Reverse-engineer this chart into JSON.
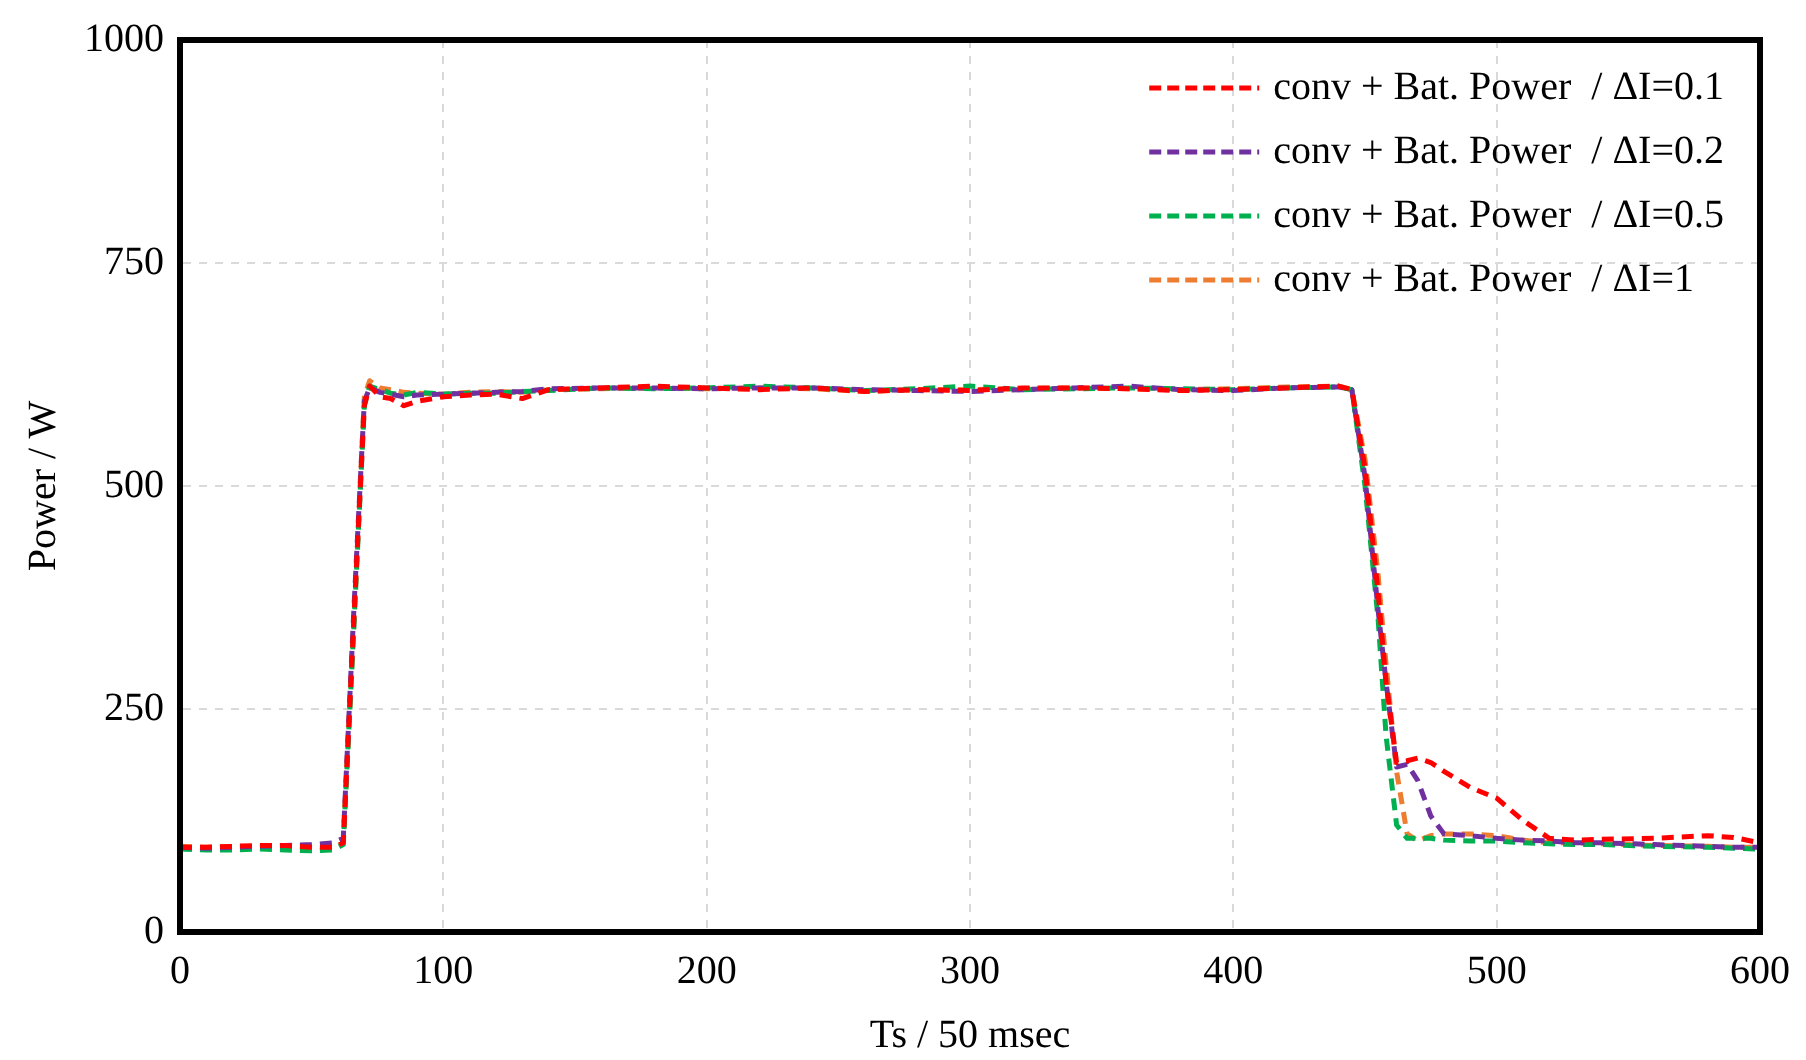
{
  "chart_data": {
    "type": "line",
    "xlabel": "Ts / 50 msec",
    "ylabel": "Power / W",
    "x": [
      0,
      10,
      20,
      30,
      40,
      50,
      58,
      62,
      66,
      70,
      72,
      76,
      80,
      85,
      90,
      100,
      110,
      120,
      130,
      140,
      160,
      180,
      200,
      220,
      240,
      260,
      280,
      300,
      320,
      340,
      360,
      380,
      400,
      420,
      440,
      445,
      450,
      455,
      458,
      462,
      466,
      470,
      475,
      480,
      490,
      500,
      510,
      520,
      530,
      540,
      560,
      580,
      590,
      600
    ],
    "series": [
      {
        "name": "conv + Bat. Power  / ΔI=0.1",
        "color": "#ff0000",
        "values": [
          95,
          95,
          96,
          97,
          97,
          95,
          95,
          100,
          350,
          590,
          612,
          600,
          598,
          590,
          595,
          600,
          602,
          603,
          598,
          608,
          610,
          612,
          610,
          608,
          610,
          606,
          608,
          607,
          610,
          610,
          609,
          607,
          608,
          610,
          612,
          608,
          520,
          380,
          280,
          190,
          192,
          195,
          190,
          180,
          162,
          150,
          125,
          105,
          103,
          104,
          105,
          108,
          106,
          100
        ]
      },
      {
        "name": "conv + Bat. Power  / ΔI=0.2",
        "color": "#7030a0",
        "values": [
          95,
          94,
          95,
          96,
          97,
          98,
          100,
          105,
          360,
          595,
          610,
          605,
          603,
          600,
          602,
          603,
          604,
          605,
          606,
          609,
          610,
          610,
          609,
          610,
          610,
          608,
          607,
          606,
          608,
          610,
          612,
          608,
          607,
          610,
          611,
          608,
          510,
          360,
          280,
          185,
          188,
          170,
          130,
          110,
          108,
          105,
          103,
          102,
          100,
          100,
          98,
          96,
          95,
          95
        ]
      },
      {
        "name": "conv + Bat. Power  / ΔI=0.5",
        "color": "#00b050",
        "values": [
          93,
          92,
          92,
          93,
          92,
          91,
          92,
          98,
          340,
          590,
          612,
          608,
          604,
          602,
          605,
          603,
          604,
          604,
          606,
          607,
          610,
          609,
          610,
          612,
          610,
          607,
          609,
          612,
          608,
          609,
          610,
          609,
          608,
          610,
          611,
          608,
          500,
          350,
          220,
          120,
          105,
          105,
          105,
          103,
          102,
          102,
          100,
          99,
          98,
          98,
          96,
          95,
          94,
          93
        ]
      },
      {
        "name": "conv + Bat. Power  / ΔI=1",
        "color": "#ed7d31",
        "values": [
          96,
          95,
          96,
          95,
          94,
          93,
          93,
          100,
          345,
          600,
          618,
          610,
          608,
          605,
          604,
          603,
          605,
          606,
          605,
          608,
          609,
          610,
          609,
          610,
          609,
          606,
          608,
          608,
          609,
          610,
          609,
          608,
          609,
          611,
          612,
          608,
          530,
          400,
          300,
          180,
          110,
          102,
          108,
          110,
          110,
          108,
          103,
          100,
          100,
          99,
          97,
          96,
          95,
          95
        ]
      }
    ],
    "xlim": [
      0,
      600
    ],
    "xticks": [
      0,
      100,
      200,
      300,
      400,
      500,
      600
    ],
    "ylim": [
      0,
      1000
    ],
    "yticks": [
      0,
      250,
      500,
      750,
      1000
    ],
    "grid": true,
    "legend": "top right",
    "marker": "none",
    "line_style": "dashed"
  }
}
